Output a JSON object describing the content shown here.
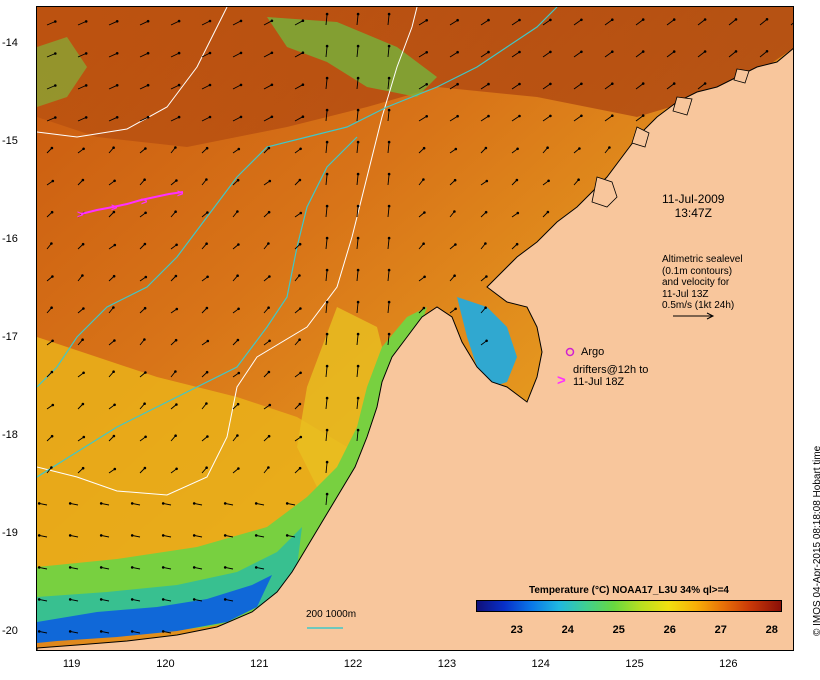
{
  "map": {
    "lon_ticks": [
      "119",
      "120",
      "121",
      "122",
      "123",
      "124",
      "125",
      "126"
    ],
    "lat_ticks": [
      "-14",
      "-15",
      "-16",
      "-17",
      "-18",
      "-19",
      "-20"
    ],
    "lon_range": [
      118.62,
      126.7
    ],
    "lat_range": [
      -20.2,
      -13.62
    ]
  },
  "annotations": {
    "date": "11-Jul-2009",
    "time": "13:47Z",
    "altimetry_lines": [
      "Altimetric sealevel",
      "(0.1m contours)",
      "and velocity for",
      "11-Jul 13Z",
      "0.5m/s (1kt 24h)"
    ],
    "argo_symbol": "o",
    "argo_label": "Argo",
    "drifter_symbol": ">",
    "drifter_lines": [
      "drifters@12h to",
      "11-Jul 18Z"
    ],
    "isobath_label": "200  1000m"
  },
  "colorbar": {
    "title": "Temperature (°C) NOAA17_L3U 34% ql>=4",
    "ticks": [
      "23",
      "24",
      "25",
      "26",
      "27",
      "28"
    ],
    "range": [
      22.2,
      28.2
    ]
  },
  "credit": "© IMOS 04-Apr-2015 08:18:08 Hobart time",
  "colors": {
    "land": "#f8c69c",
    "sst_warm": "#cc5a14",
    "sst_mid": "#e8a018",
    "sst_cool": "#40c070",
    "sst_cold": "#0a50d0",
    "isobath_200": "#ffffff",
    "isobath_1000": "#40c8c8",
    "drifter": "#ff30ff",
    "argo": "#d020d0"
  }
}
